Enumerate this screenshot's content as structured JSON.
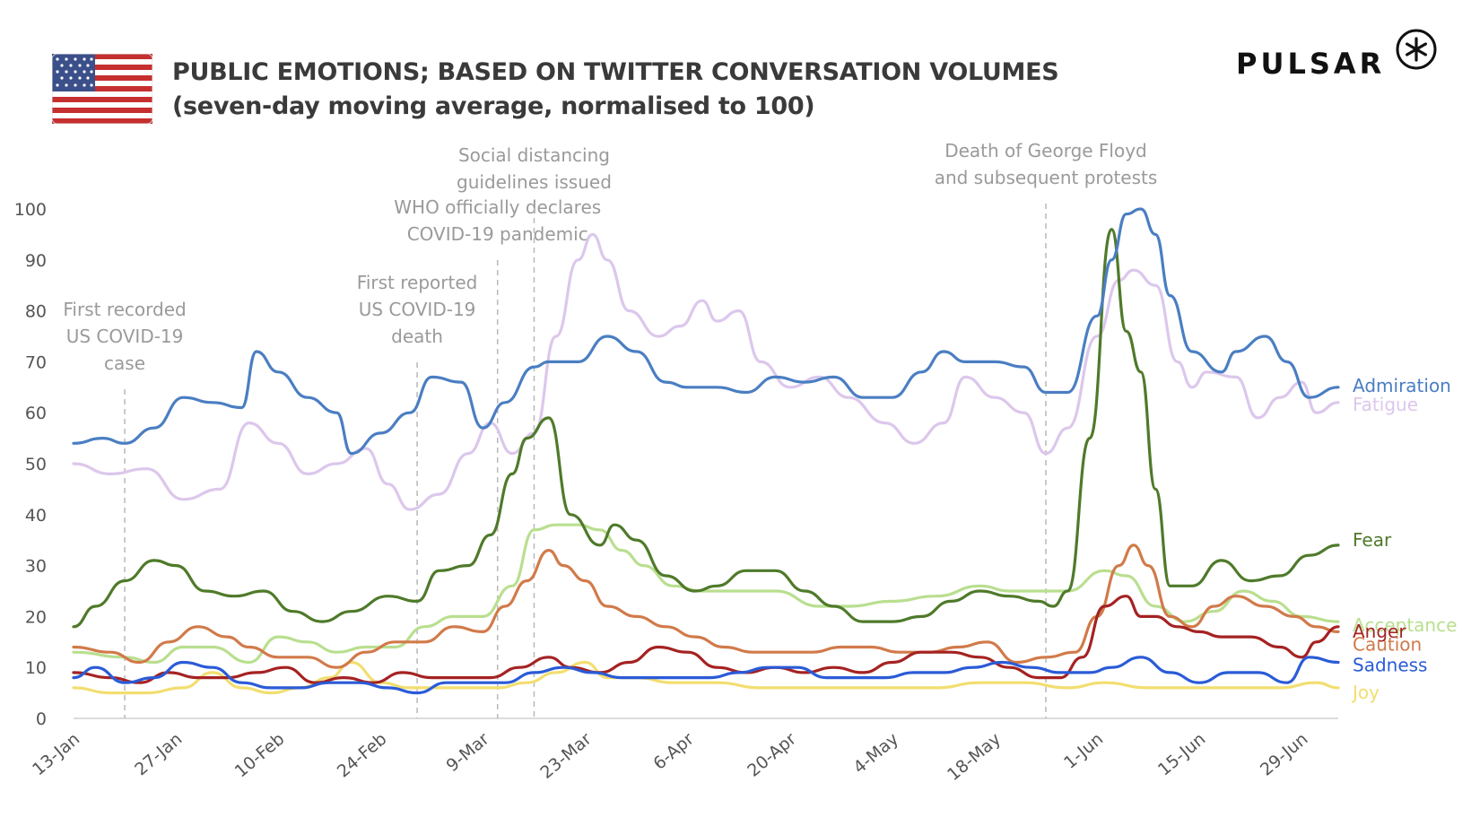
{
  "header": {
    "title_line1": "PUBLIC EMOTIONS; BASED ON TWITTER CONVERSATION VOLUMES",
    "title_line2": "(seven-day moving average, normalised to 100)",
    "brand": "PULSAR",
    "flag_icon": "us-flag-icon"
  },
  "chart_data": {
    "type": "line",
    "title": "PUBLIC EMOTIONS; BASED ON TWITTER CONVERSATION VOLUMES",
    "subtitle": "(seven-day moving average, normalised to 100)",
    "xlabel": "",
    "ylabel": "",
    "ylim": [
      0,
      100
    ],
    "yticks": [
      "0",
      "10",
      "20",
      "30",
      "40",
      "50",
      "60",
      "70",
      "80",
      "90",
      "100"
    ],
    "xlim": [
      "2020-01-13",
      "2020-07-04"
    ],
    "xticks": [
      {
        "date": "2020-01-13",
        "label": "13-Jan"
      },
      {
        "date": "2020-01-27",
        "label": "27-Jan"
      },
      {
        "date": "2020-02-10",
        "label": "10-Feb"
      },
      {
        "date": "2020-02-24",
        "label": "24-Feb"
      },
      {
        "date": "2020-03-09",
        "label": "9-Mar"
      },
      {
        "date": "2020-03-23",
        "label": "23-Mar"
      },
      {
        "date": "2020-04-06",
        "label": "6-Apr"
      },
      {
        "date": "2020-04-20",
        "label": "20-Apr"
      },
      {
        "date": "2020-05-04",
        "label": "4-May"
      },
      {
        "date": "2020-05-18",
        "label": "18-May"
      },
      {
        "date": "2020-06-01",
        "label": "1-Jun"
      },
      {
        "date": "2020-06-15",
        "label": "15-Jun"
      },
      {
        "date": "2020-06-29",
        "label": "29-Jun"
      }
    ],
    "grid": false,
    "legend": "end-of-line labels",
    "annotations": [
      {
        "date": "2020-01-20",
        "lines": [
          "First recorded",
          "US COVID-19",
          "case"
        ]
      },
      {
        "date": "2020-02-29",
        "lines": [
          "First reported",
          "US COVID-19",
          "death"
        ]
      },
      {
        "date": "2020-03-11",
        "lines": [
          "WHO officially declares",
          "COVID-19 pandemic"
        ]
      },
      {
        "date": "2020-03-16",
        "lines": [
          "Social distancing",
          "guidelines issued"
        ]
      },
      {
        "date": "2020-05-25",
        "lines": [
          "Death of George Floyd",
          "and subsequent protests"
        ]
      }
    ],
    "series": [
      {
        "name": "Admiration",
        "color": "#4a7ec2",
        "x": [
          "2020-01-13",
          "2020-01-17",
          "2020-01-20",
          "2020-01-24",
          "2020-01-28",
          "2020-02-01",
          "2020-02-05",
          "2020-02-07",
          "2020-02-10",
          "2020-02-14",
          "2020-02-18",
          "2020-02-20",
          "2020-02-24",
          "2020-02-28",
          "2020-03-02",
          "2020-03-06",
          "2020-03-09",
          "2020-03-12",
          "2020-03-16",
          "2020-03-18",
          "2020-03-22",
          "2020-03-26",
          "2020-03-30",
          "2020-04-03",
          "2020-04-06",
          "2020-04-10",
          "2020-04-14",
          "2020-04-18",
          "2020-04-22",
          "2020-04-26",
          "2020-04-30",
          "2020-05-04",
          "2020-05-08",
          "2020-05-11",
          "2020-05-14",
          "2020-05-18",
          "2020-05-22",
          "2020-05-25",
          "2020-05-28",
          "2020-06-01",
          "2020-06-03",
          "2020-06-05",
          "2020-06-07",
          "2020-06-09",
          "2020-06-11",
          "2020-06-14",
          "2020-06-18",
          "2020-06-20",
          "2020-06-24",
          "2020-06-27",
          "2020-06-30",
          "2020-07-04"
        ],
        "y": [
          54,
          55,
          54,
          57,
          63,
          62,
          61,
          72,
          68,
          63,
          60,
          52,
          56,
          60,
          67,
          66,
          57,
          62,
          69,
          70,
          70,
          75,
          72,
          66,
          65,
          65,
          64,
          67,
          66,
          67,
          63,
          63,
          68,
          72,
          70,
          70,
          69,
          64,
          64,
          79,
          90,
          99,
          100,
          95,
          83,
          72,
          68,
          72,
          75,
          70,
          63,
          65
        ]
      },
      {
        "name": "Fatigue",
        "color": "#dcc7ec",
        "x": [
          "2020-01-13",
          "2020-01-18",
          "2020-01-23",
          "2020-01-28",
          "2020-02-02",
          "2020-02-06",
          "2020-02-10",
          "2020-02-14",
          "2020-02-18",
          "2020-02-22",
          "2020-02-25",
          "2020-02-28",
          "2020-03-03",
          "2020-03-07",
          "2020-03-10",
          "2020-03-13",
          "2020-03-16",
          "2020-03-19",
          "2020-03-22",
          "2020-03-24",
          "2020-03-26",
          "2020-03-29",
          "2020-04-02",
          "2020-04-05",
          "2020-04-08",
          "2020-04-10",
          "2020-04-13",
          "2020-04-16",
          "2020-04-20",
          "2020-04-24",
          "2020-04-28",
          "2020-05-03",
          "2020-05-07",
          "2020-05-11",
          "2020-05-14",
          "2020-05-18",
          "2020-05-22",
          "2020-05-25",
          "2020-05-28",
          "2020-06-01",
          "2020-06-04",
          "2020-06-06",
          "2020-06-09",
          "2020-06-12",
          "2020-06-14",
          "2020-06-16",
          "2020-06-20",
          "2020-06-23",
          "2020-06-26",
          "2020-06-29",
          "2020-07-01",
          "2020-07-04"
        ],
        "y": [
          50,
          48,
          49,
          43,
          45,
          58,
          54,
          48,
          50,
          53,
          46,
          41,
          44,
          52,
          58,
          52,
          56,
          75,
          90,
          95,
          90,
          80,
          75,
          77,
          82,
          78,
          80,
          70,
          65,
          67,
          63,
          58,
          54,
          58,
          67,
          63,
          60,
          52,
          57,
          75,
          86,
          88,
          85,
          70,
          65,
          68,
          67,
          59,
          63,
          66,
          60,
          62
        ]
      },
      {
        "name": "Fear",
        "color": "#4f7a2a",
        "x": [
          "2020-01-13",
          "2020-01-16",
          "2020-01-20",
          "2020-01-24",
          "2020-01-27",
          "2020-01-31",
          "2020-02-04",
          "2020-02-08",
          "2020-02-12",
          "2020-02-16",
          "2020-02-20",
          "2020-02-25",
          "2020-02-29",
          "2020-03-03",
          "2020-03-07",
          "2020-03-10",
          "2020-03-13",
          "2020-03-15",
          "2020-03-18",
          "2020-03-21",
          "2020-03-25",
          "2020-03-27",
          "2020-03-30",
          "2020-04-03",
          "2020-04-07",
          "2020-04-10",
          "2020-04-14",
          "2020-04-18",
          "2020-04-22",
          "2020-04-26",
          "2020-04-30",
          "2020-05-04",
          "2020-05-08",
          "2020-05-12",
          "2020-05-16",
          "2020-05-20",
          "2020-05-24",
          "2020-05-26",
          "2020-05-28",
          "2020-05-31",
          "2020-06-03",
          "2020-06-05",
          "2020-06-07",
          "2020-06-09",
          "2020-06-11",
          "2020-06-14",
          "2020-06-18",
          "2020-06-22",
          "2020-06-26",
          "2020-06-30",
          "2020-07-04"
        ],
        "y": [
          18,
          22,
          27,
          31,
          30,
          25,
          24,
          25,
          21,
          19,
          21,
          24,
          23,
          29,
          30,
          36,
          48,
          55,
          59,
          40,
          34,
          38,
          35,
          28,
          25,
          26,
          29,
          29,
          25,
          22,
          19,
          19,
          20,
          23,
          25,
          24,
          23,
          22,
          25,
          55,
          96,
          76,
          68,
          45,
          26,
          26,
          31,
          27,
          28,
          32,
          34
        ]
      },
      {
        "name": "Acceptance",
        "color": "#b9df8f",
        "x": [
          "2020-01-13",
          "2020-01-20",
          "2020-01-24",
          "2020-01-28",
          "2020-02-01",
          "2020-02-06",
          "2020-02-10",
          "2020-02-14",
          "2020-02-18",
          "2020-02-22",
          "2020-02-26",
          "2020-03-01",
          "2020-03-05",
          "2020-03-09",
          "2020-03-13",
          "2020-03-16",
          "2020-03-19",
          "2020-03-22",
          "2020-03-25",
          "2020-03-28",
          "2020-03-31",
          "2020-04-04",
          "2020-04-08",
          "2020-04-12",
          "2020-04-18",
          "2020-04-24",
          "2020-04-28",
          "2020-05-04",
          "2020-05-10",
          "2020-05-16",
          "2020-05-20",
          "2020-05-24",
          "2020-05-28",
          "2020-06-02",
          "2020-06-05",
          "2020-06-09",
          "2020-06-13",
          "2020-06-17",
          "2020-06-21",
          "2020-06-25",
          "2020-06-29",
          "2020-07-04"
        ],
        "y": [
          13,
          12,
          11,
          14,
          14,
          11,
          16,
          15,
          13,
          14,
          14,
          18,
          20,
          20,
          26,
          37,
          38,
          38,
          37,
          33,
          30,
          26,
          25,
          25,
          25,
          22,
          22,
          23,
          24,
          26,
          25,
          25,
          25,
          29,
          28,
          22,
          19,
          21,
          25,
          23,
          20,
          19
        ]
      },
      {
        "name": "Anger",
        "color": "#a52222",
        "x": [
          "2020-01-13",
          "2020-01-18",
          "2020-01-22",
          "2020-01-26",
          "2020-01-30",
          "2020-02-03",
          "2020-02-07",
          "2020-02-11",
          "2020-02-15",
          "2020-02-19",
          "2020-02-23",
          "2020-02-27",
          "2020-03-02",
          "2020-03-06",
          "2020-03-10",
          "2020-03-14",
          "2020-03-18",
          "2020-03-21",
          "2020-03-25",
          "2020-03-29",
          "2020-04-02",
          "2020-04-06",
          "2020-04-10",
          "2020-04-14",
          "2020-04-18",
          "2020-04-22",
          "2020-04-26",
          "2020-04-30",
          "2020-05-04",
          "2020-05-08",
          "2020-05-12",
          "2020-05-16",
          "2020-05-20",
          "2020-05-24",
          "2020-05-27",
          "2020-05-30",
          "2020-06-02",
          "2020-06-05",
          "2020-06-07",
          "2020-06-09",
          "2020-06-12",
          "2020-06-15",
          "2020-06-18",
          "2020-06-22",
          "2020-06-26",
          "2020-06-29",
          "2020-07-01",
          "2020-07-04"
        ],
        "y": [
          9,
          8,
          7,
          9,
          8,
          8,
          9,
          10,
          7,
          8,
          7,
          9,
          8,
          8,
          8,
          10,
          12,
          10,
          9,
          11,
          14,
          13,
          10,
          9,
          10,
          9,
          10,
          9,
          11,
          13,
          13,
          12,
          10,
          8,
          8,
          12,
          22,
          24,
          20,
          20,
          18,
          17,
          16,
          16,
          14,
          12,
          15,
          18
        ]
      },
      {
        "name": "Caution",
        "color": "#d17a4a",
        "x": [
          "2020-01-13",
          "2020-01-18",
          "2020-01-22",
          "2020-01-26",
          "2020-01-30",
          "2020-02-03",
          "2020-02-06",
          "2020-02-10",
          "2020-02-14",
          "2020-02-18",
          "2020-02-22",
          "2020-02-26",
          "2020-03-01",
          "2020-03-05",
          "2020-03-09",
          "2020-03-12",
          "2020-03-15",
          "2020-03-18",
          "2020-03-20",
          "2020-03-23",
          "2020-03-26",
          "2020-03-30",
          "2020-04-03",
          "2020-04-07",
          "2020-04-11",
          "2020-04-15",
          "2020-04-19",
          "2020-04-23",
          "2020-04-27",
          "2020-05-01",
          "2020-05-05",
          "2020-05-09",
          "2020-05-13",
          "2020-05-17",
          "2020-05-21",
          "2020-05-25",
          "2020-05-29",
          "2020-06-01",
          "2020-06-04",
          "2020-06-06",
          "2020-06-08",
          "2020-06-11",
          "2020-06-14",
          "2020-06-17",
          "2020-06-20",
          "2020-06-24",
          "2020-06-28",
          "2020-07-01",
          "2020-07-04"
        ],
        "y": [
          14,
          13,
          11,
          15,
          18,
          16,
          14,
          12,
          12,
          10,
          13,
          15,
          15,
          18,
          17,
          22,
          27,
          33,
          30,
          27,
          22,
          20,
          18,
          16,
          14,
          13,
          13,
          13,
          14,
          14,
          13,
          13,
          14,
          15,
          11,
          12,
          13,
          20,
          30,
          34,
          30,
          20,
          18,
          22,
          24,
          22,
          20,
          18,
          17
        ]
      },
      {
        "name": "Sadness",
        "color": "#2a5bd7",
        "x": [
          "2020-01-13",
          "2020-01-16",
          "2020-01-20",
          "2020-01-24",
          "2020-01-28",
          "2020-02-01",
          "2020-02-05",
          "2020-02-09",
          "2020-02-13",
          "2020-02-17",
          "2020-02-21",
          "2020-02-25",
          "2020-02-29",
          "2020-03-04",
          "2020-03-08",
          "2020-03-12",
          "2020-03-16",
          "2020-03-20",
          "2020-03-24",
          "2020-03-28",
          "2020-04-01",
          "2020-04-05",
          "2020-04-09",
          "2020-04-13",
          "2020-04-17",
          "2020-04-21",
          "2020-04-25",
          "2020-04-29",
          "2020-05-03",
          "2020-05-07",
          "2020-05-11",
          "2020-05-15",
          "2020-05-19",
          "2020-05-23",
          "2020-05-27",
          "2020-05-31",
          "2020-06-03",
          "2020-06-07",
          "2020-06-11",
          "2020-06-15",
          "2020-06-19",
          "2020-06-23",
          "2020-06-27",
          "2020-06-30",
          "2020-07-04"
        ],
        "y": [
          8,
          10,
          7,
          8,
          11,
          10,
          7,
          6,
          6,
          7,
          7,
          6,
          5,
          7,
          7,
          7,
          9,
          10,
          9,
          8,
          8,
          8,
          8,
          9,
          10,
          10,
          8,
          8,
          8,
          9,
          9,
          10,
          11,
          10,
          9,
          9,
          10,
          12,
          9,
          7,
          9,
          9,
          7,
          12,
          11
        ]
      },
      {
        "name": "Joy",
        "color": "#f2de70",
        "x": [
          "2020-01-13",
          "2020-01-18",
          "2020-01-23",
          "2020-01-28",
          "2020-02-01",
          "2020-02-05",
          "2020-02-09",
          "2020-02-13",
          "2020-02-17",
          "2020-02-20",
          "2020-02-24",
          "2020-02-28",
          "2020-03-03",
          "2020-03-07",
          "2020-03-11",
          "2020-03-15",
          "2020-03-19",
          "2020-03-23",
          "2020-03-26",
          "2020-03-30",
          "2020-04-04",
          "2020-04-10",
          "2020-04-16",
          "2020-04-22",
          "2020-04-28",
          "2020-05-04",
          "2020-05-10",
          "2020-05-16",
          "2020-05-22",
          "2020-05-28",
          "2020-06-02",
          "2020-06-08",
          "2020-06-14",
          "2020-06-20",
          "2020-06-26",
          "2020-07-01",
          "2020-07-04"
        ],
        "y": [
          6,
          5,
          5,
          6,
          9,
          6,
          5,
          6,
          8,
          11,
          7,
          6,
          6,
          6,
          6,
          7,
          9,
          11,
          8,
          8,
          7,
          7,
          6,
          6,
          6,
          6,
          6,
          7,
          7,
          6,
          7,
          6,
          6,
          6,
          6,
          7,
          6
        ]
      }
    ]
  }
}
